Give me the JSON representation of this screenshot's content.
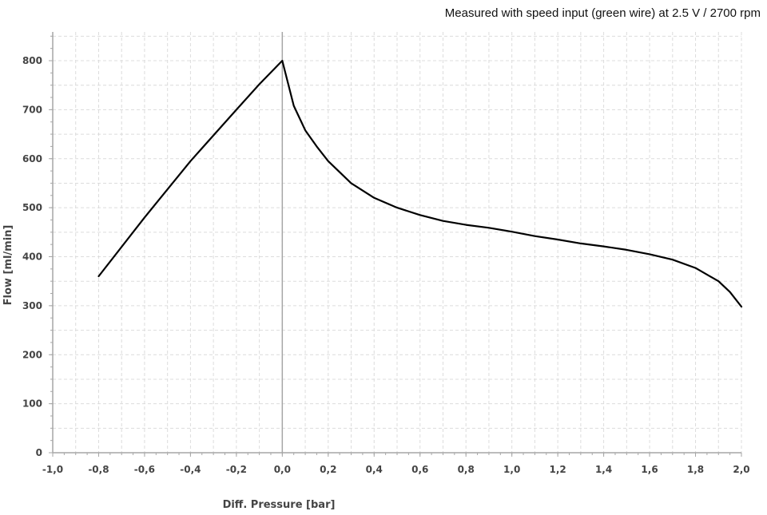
{
  "chart_data": {
    "type": "line",
    "title": "Measured with speed input (green wire) at 2.5 V / 2700 rpm",
    "xlabel": "Diff. Pressure [bar]",
    "ylabel": "Flow [ml/min]",
    "xlim": [
      -1.0,
      2.0
    ],
    "ylim": [
      0,
      850
    ],
    "x_ticks": [
      "-1,0",
      "-0,8",
      "-0,6",
      "-0,4",
      "-0,2",
      "0,0",
      "0,2",
      "0,4",
      "0,6",
      "0,8",
      "1,0",
      "1,2",
      "1,4",
      "1,6",
      "1,8",
      "2,0"
    ],
    "x_tick_values": [
      -1.0,
      -0.8,
      -0.6,
      -0.4,
      -0.2,
      0.0,
      0.2,
      0.4,
      0.6,
      0.8,
      1.0,
      1.2,
      1.4,
      1.6,
      1.8,
      2.0
    ],
    "y_ticks": [
      "0",
      "100",
      "200",
      "300",
      "400",
      "500",
      "600",
      "700",
      "800"
    ],
    "y_tick_values": [
      0,
      100,
      200,
      300,
      400,
      500,
      600,
      700,
      800
    ],
    "grid": true,
    "legend": "none",
    "line_color": "#000000",
    "series": [
      {
        "x": [
          -0.8,
          -0.6,
          -0.4,
          -0.2,
          -0.1,
          0.0,
          0.05,
          0.1,
          0.15,
          0.2,
          0.3,
          0.4,
          0.5,
          0.6,
          0.7,
          0.8,
          0.9,
          1.0,
          1.1,
          1.2,
          1.3,
          1.4,
          1.5,
          1.6,
          1.7,
          1.8,
          1.9,
          1.95,
          2.0
        ],
        "y": [
          360,
          480,
          595,
          700,
          752,
          800,
          708,
          658,
          625,
          595,
          550,
          520,
          500,
          485,
          473,
          465,
          459,
          451,
          442,
          435,
          427,
          421,
          414,
          405,
          394,
          377,
          350,
          328,
          298
        ]
      }
    ]
  }
}
